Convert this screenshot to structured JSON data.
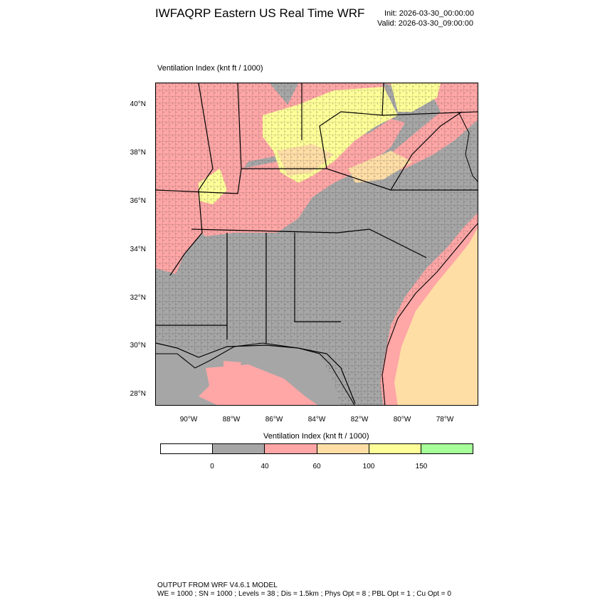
{
  "header": {
    "title": "IWFAQRP Eastern US Real Time WRF",
    "init": "Init: 2026-03-30_00:00:00",
    "valid": "Valid: 2026-03-30_09:00:00"
  },
  "map": {
    "subtitle": "Ventilation Index   (knt ft / 1000)",
    "lat_ticks": [
      "40°N",
      "38°N",
      "36°N",
      "34°N",
      "32°N",
      "30°N",
      "28°N"
    ],
    "lon_ticks": [
      "90°W",
      "88°W",
      "86°W",
      "84°W",
      "82°W",
      "80°W",
      "78°W"
    ],
    "region": "Eastern US (Mississippi to Mid-Atlantic)"
  },
  "colorbar": {
    "title": "Ventilation Index  (knt ft / 1000)",
    "bins": [
      {
        "color": "#ffffff"
      },
      {
        "color": "#a6a6a6"
      },
      {
        "color": "#ffa6a6"
      },
      {
        "color": "#ffdea6"
      },
      {
        "color": "#ffff99"
      },
      {
        "color": "#a6ff99"
      }
    ],
    "labels": [
      "0",
      "40",
      "60",
      "100",
      "150"
    ]
  },
  "footer": {
    "line1": "OUTPUT FROM WRF V4.6.1 MODEL",
    "line2": "WE = 1000 ; SN = 1000 ; Levels = 38 ; Dis = 1.5km ; Phys Opt = 8 ; PBL Opt = 1 ; Cu Opt = 0"
  }
}
